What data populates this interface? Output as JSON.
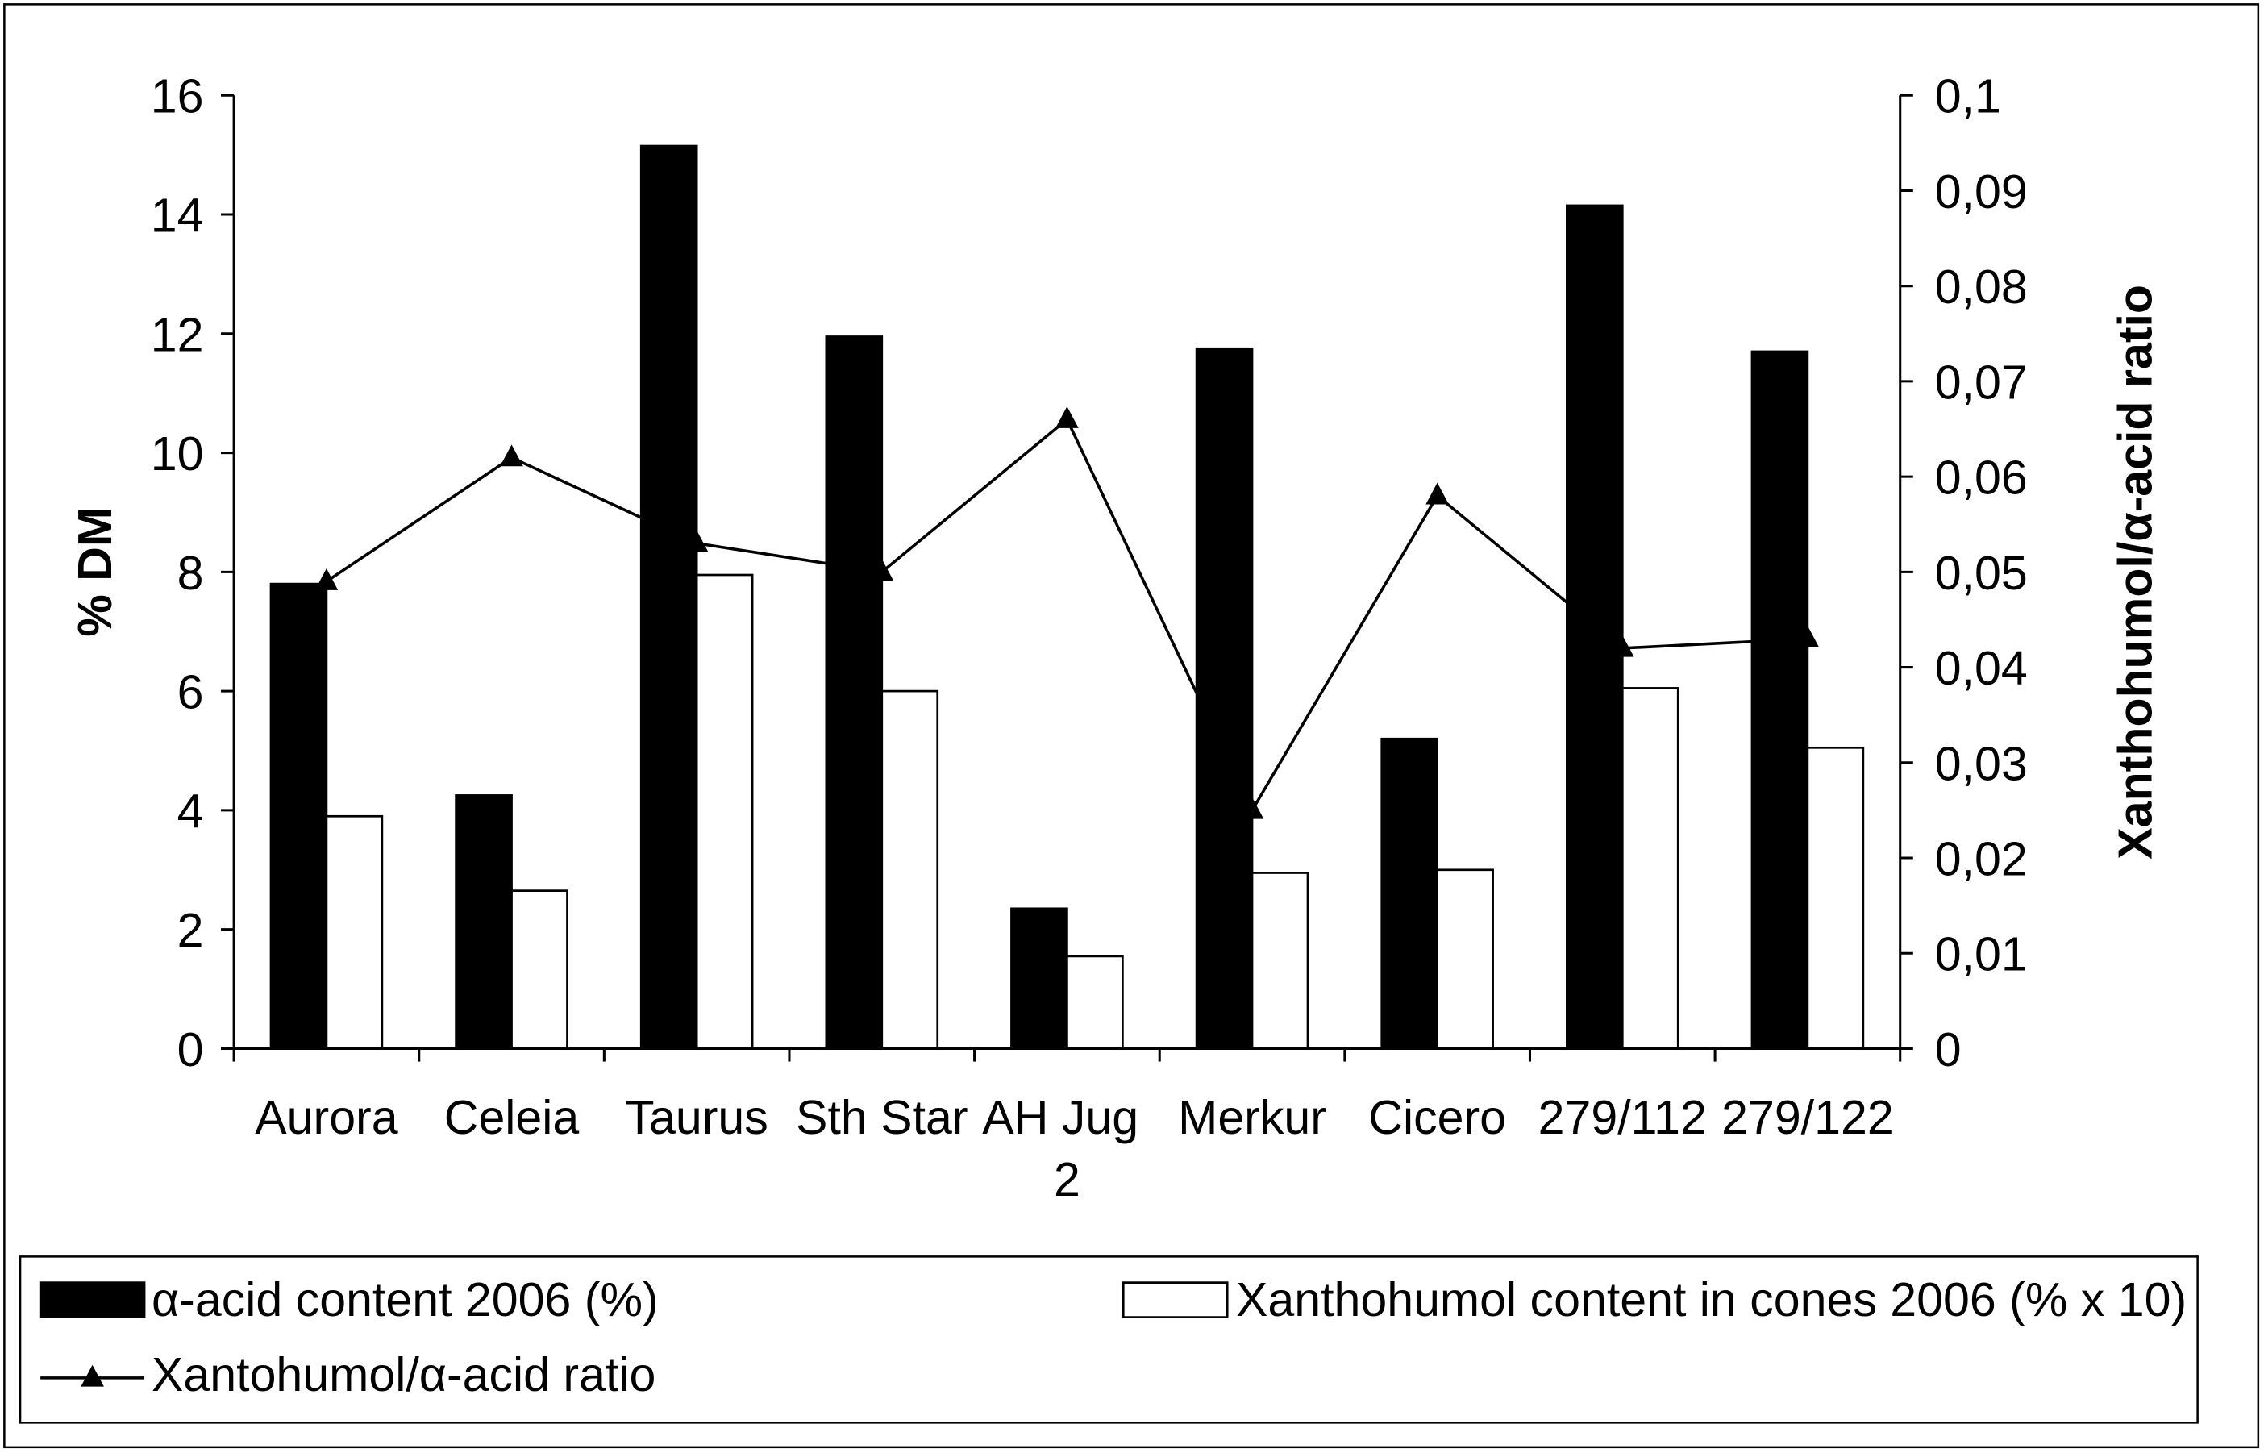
{
  "chart_data": {
    "type": "bar",
    "categories": [
      "Aurora",
      "Celeia",
      "Taurus",
      "Sth Star",
      "AH Jug 2",
      "Merkur",
      "Cicero",
      "279/112",
      "279/122"
    ],
    "series": [
      {
        "name": "α-acid content 2006 (%)",
        "type": "bar",
        "axis": "left",
        "color": "#000000",
        "edgecolor": "#000000",
        "values": [
          7.8,
          4.25,
          15.15,
          11.95,
          2.35,
          11.75,
          5.2,
          14.15,
          11.7
        ]
      },
      {
        "name": "Xanthohumol content in cones 2006 (% x 10)",
        "type": "bar",
        "axis": "left",
        "color": "#ffffff",
        "edgecolor": "#000000",
        "values": [
          3.9,
          2.65,
          7.95,
          6.0,
          1.55,
          2.95,
          3.0,
          6.05,
          5.05
        ]
      },
      {
        "name": "Xantohumol/α-acid ratio",
        "type": "line",
        "axis": "right",
        "color": "#000000",
        "marker": "triangle",
        "values": [
          0.049,
          0.062,
          0.053,
          0.05,
          0.066,
          0.025,
          0.058,
          0.042,
          0.043
        ]
      }
    ],
    "ylabel": "% DM",
    "y2label": "Xanthohumol/α-acid ratio",
    "ylim": [
      0,
      16
    ],
    "y2lim": [
      0,
      0.1
    ],
    "y_tick_labels": [
      "0",
      "2",
      "4",
      "6",
      "8",
      "10",
      "12",
      "14",
      "16"
    ],
    "y2_tick_labels": [
      "0",
      "0,01",
      "0,02",
      "0,03",
      "0,04",
      "0,05",
      "0,06",
      "0,07",
      "0,08",
      "0,09",
      "0,1"
    ],
    "grid": false,
    "legend_position": "bottom"
  }
}
